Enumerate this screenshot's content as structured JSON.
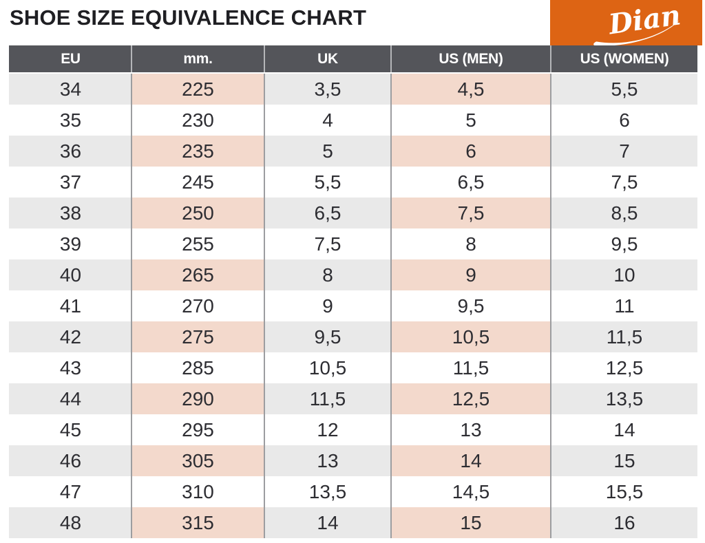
{
  "logo": {
    "brand": "Dian"
  },
  "colors": {
    "orange": "#dd6414",
    "header_bg": "#54555a",
    "row_gray": "#e9e9e9",
    "row_pink": "#f3d9cc",
    "grid": "#9c9da0",
    "header_grid": "#b5b6b9",
    "cell_text": "#2d2d32",
    "title_color": "#1f1f23"
  },
  "chart_data": {
    "type": "table",
    "title": "SHOE SIZE EQUIVALENCE CHART",
    "columns": [
      "EU",
      "mm.",
      "UK",
      "US (MEN)",
      "US (WOMEN)"
    ],
    "rows": [
      [
        "34",
        "225",
        "3,5",
        "4,5",
        "5,5"
      ],
      [
        "35",
        "230",
        "4",
        "5",
        "6"
      ],
      [
        "36",
        "235",
        "5",
        "6",
        "7"
      ],
      [
        "37",
        "245",
        "5,5",
        "6,5",
        "7,5"
      ],
      [
        "38",
        "250",
        "6,5",
        "7,5",
        "8,5"
      ],
      [
        "39",
        "255",
        "7,5",
        "8",
        "9,5"
      ],
      [
        "40",
        "265",
        "8",
        "9",
        "10"
      ],
      [
        "41",
        "270",
        "9",
        "9,5",
        "11"
      ],
      [
        "42",
        "275",
        "9,5",
        "10,5",
        "11,5"
      ],
      [
        "43",
        "285",
        "10,5",
        "11,5",
        "12,5"
      ],
      [
        "44",
        "290",
        "11,5",
        "12,5",
        "13,5"
      ],
      [
        "45",
        "295",
        "12",
        "13",
        "14"
      ],
      [
        "46",
        "305",
        "13",
        "14",
        "15"
      ],
      [
        "47",
        "310",
        "13,5",
        "14,5",
        "15,5"
      ],
      [
        "48",
        "315",
        "14",
        "15",
        "16"
      ]
    ],
    "layout": {
      "striping": "alternate rows shaded; EU/UK/US(WOMEN) columns gray, mm./US(MEN) columns pink",
      "header_style": "dark gray bar, white bold condensed text",
      "grid": "vertical separators only"
    }
  }
}
